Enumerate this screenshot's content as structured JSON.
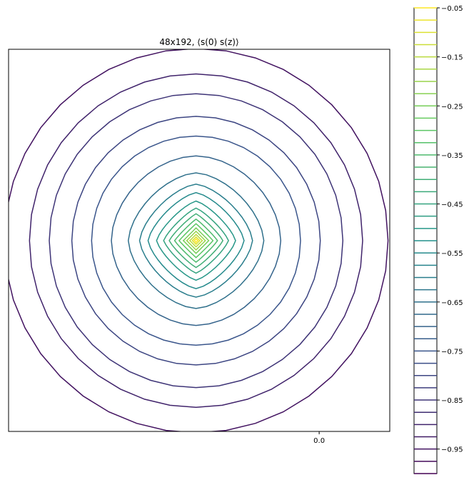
{
  "chart_data": {
    "type": "contour",
    "title": "48x192, ⟨s(0) s(z)⟩",
    "x_ticks": [
      {
        "value": 0.0,
        "label": "0.0"
      }
    ],
    "xlim": [
      -1.1,
      0.25
    ],
    "ylim": [
      -1.1,
      0.25
    ],
    "center": [
      -0.436,
      -0.426
    ],
    "colormap": "viridis",
    "levels": [
      -1.0,
      -0.975,
      -0.95,
      -0.925,
      -0.9,
      -0.875,
      -0.85,
      -0.825,
      -0.8,
      -0.775,
      -0.75,
      -0.725,
      -0.7,
      -0.675,
      -0.65,
      -0.625,
      -0.6,
      -0.575,
      -0.55,
      -0.525,
      -0.5,
      -0.475,
      -0.45,
      -0.425,
      -0.4,
      -0.375,
      -0.35,
      -0.325,
      -0.3,
      -0.275,
      -0.25,
      -0.225,
      -0.2,
      -0.175,
      -0.15,
      -0.125,
      -0.1,
      -0.075,
      -0.05
    ],
    "colorbar": {
      "range": [
        -1.0,
        -0.05
      ],
      "ticks": [
        {
          "value": -0.05,
          "label": "−0.05"
        },
        {
          "value": -0.15,
          "label": "−0.15"
        },
        {
          "value": -0.25,
          "label": "−0.25"
        },
        {
          "value": -0.35,
          "label": "−0.35"
        },
        {
          "value": -0.45,
          "label": "−0.45"
        },
        {
          "value": -0.55,
          "label": "−0.55"
        },
        {
          "value": -0.65,
          "label": "−0.65"
        },
        {
          "value": -0.75,
          "label": "−0.75"
        },
        {
          "value": -0.85,
          "label": "−0.85"
        },
        {
          "value": -0.95,
          "label": "−0.95"
        }
      ]
    },
    "contours": [
      {
        "level": -0.95,
        "radius": 0.68
      },
      {
        "level": -0.9,
        "radius": 0.59
      },
      {
        "level": -0.85,
        "radius": 0.52
      },
      {
        "level": -0.8,
        "radius": 0.44
      },
      {
        "level": -0.75,
        "radius": 0.37
      },
      {
        "level": -0.7,
        "radius": 0.3
      },
      {
        "level": -0.65,
        "radius": 0.24
      },
      {
        "level": -0.6,
        "radius": 0.2
      },
      {
        "level": -0.55,
        "radius": 0.17
      },
      {
        "level": -0.5,
        "radius": 0.14
      },
      {
        "level": -0.45,
        "radius": 0.115
      },
      {
        "level": -0.4,
        "radius": 0.095
      },
      {
        "level": -0.35,
        "radius": 0.076
      },
      {
        "level": -0.3,
        "radius": 0.06
      },
      {
        "level": -0.25,
        "radius": 0.045
      },
      {
        "level": -0.2,
        "radius": 0.033
      },
      {
        "level": -0.15,
        "radius": 0.022
      },
      {
        "level": -0.1,
        "radius": 0.013
      },
      {
        "level": -0.05,
        "radius": 0.006
      }
    ]
  }
}
